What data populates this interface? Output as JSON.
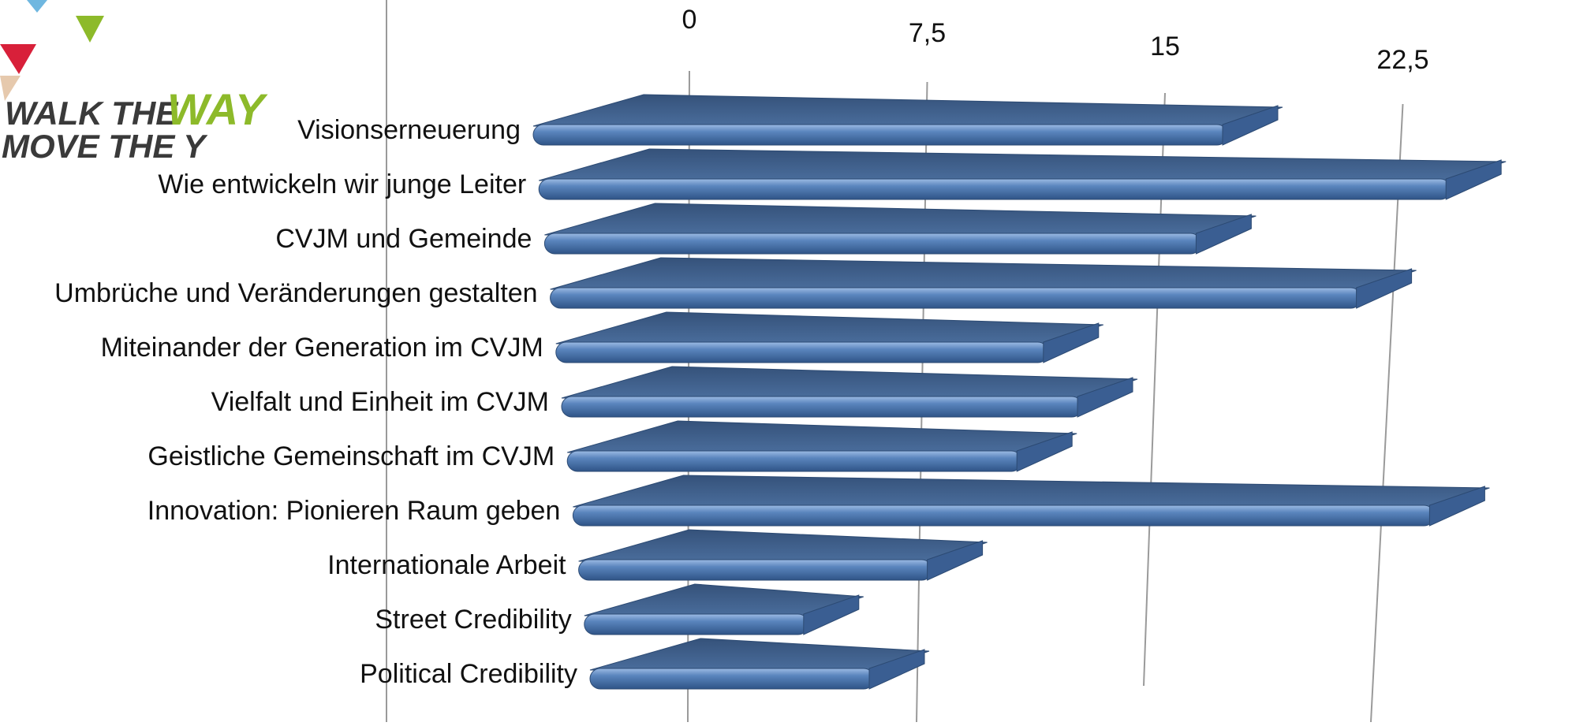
{
  "logo": {
    "line1_prefix": "WALK THE",
    "line1_accent": "WAY",
    "line2": "MOVE THE Y",
    "colors": {
      "text": "#3a3a3a",
      "accent": "#8dba2a",
      "triangle_blue": "#6fb7e0",
      "triangle_green": "#8dba2a",
      "triangle_red": "#d8203a",
      "triangle_tan": "#e6c9ad"
    }
  },
  "chart_data": {
    "type": "bar",
    "orientation": "horizontal",
    "style": "3d-perspective",
    "categories": [
      "Visionserneuerung",
      "Wie entwickeln wir junge Leiter",
      "CVJM und Gemeinde",
      "Umbrüche und Veränderungen gestalten",
      "Miteinander der Generation im CVJM",
      "Vielfalt und Einheit im CVJM",
      "Geistliche Gemeinschaft im CVJM",
      "Innovation: Pionieren Raum geben",
      "Internationale Arbeit",
      "Street Credibility",
      "Political Credibility"
    ],
    "values": [
      22,
      29,
      21,
      26,
      16,
      17,
      15,
      28,
      12,
      8,
      10
    ],
    "x_ticks": [
      "0",
      "7,5",
      "15",
      "22,5"
    ],
    "tick_values": [
      0,
      7.5,
      15,
      22.5
    ],
    "xlim": [
      0,
      30
    ],
    "grid": true,
    "bar_color": "#4a73a8",
    "bar_top_color": "#3f5f8c",
    "bar_highlight": "#8fb0dc"
  }
}
